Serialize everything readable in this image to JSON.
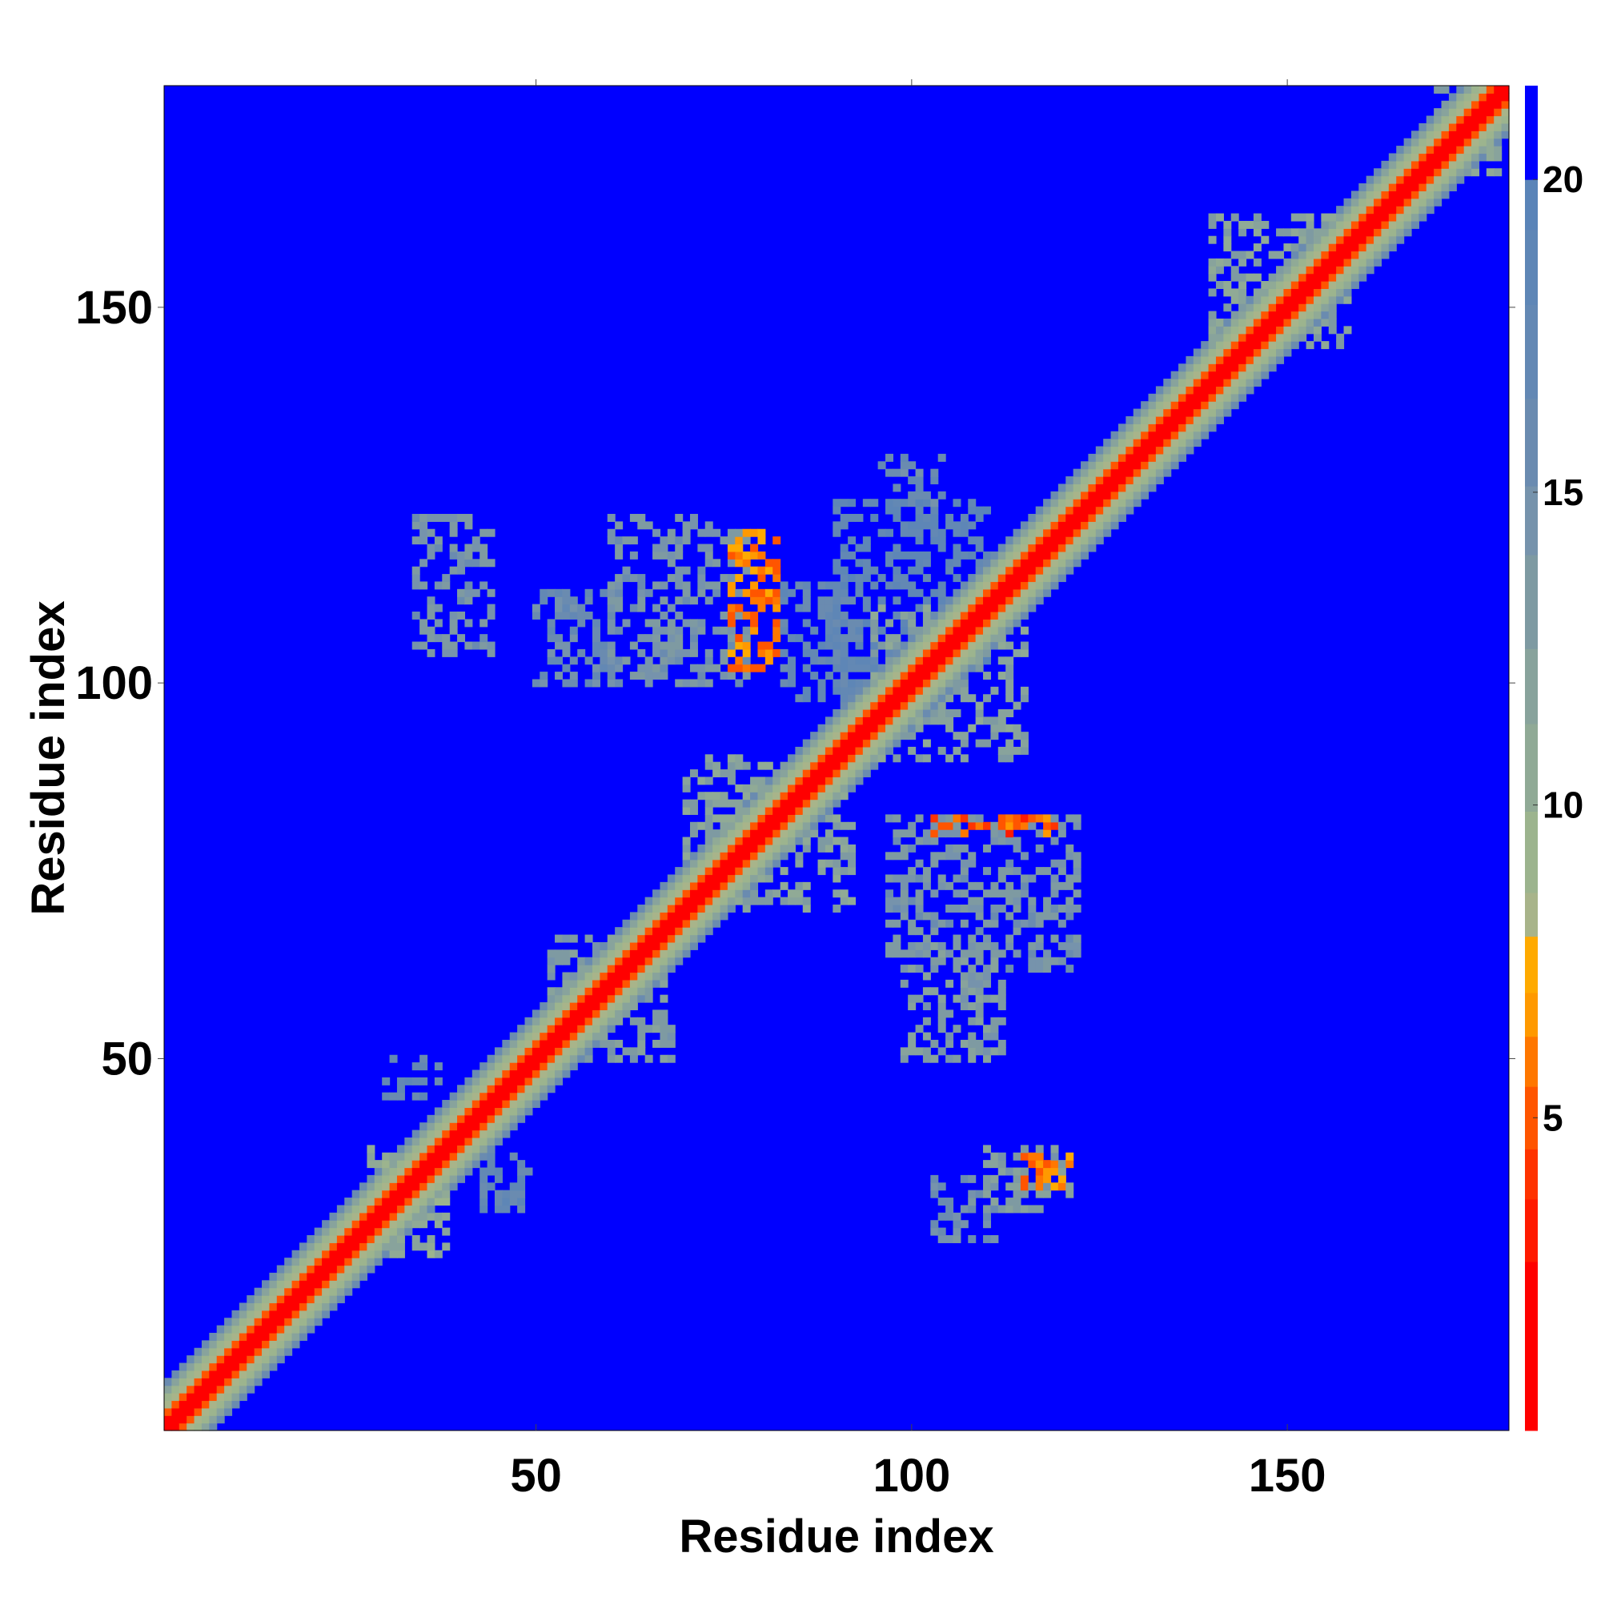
{
  "chart_data": {
    "type": "heatmap",
    "title": "",
    "xlabel": "Residue index",
    "ylabel": "Residue index",
    "x_range": [
      1,
      179
    ],
    "y_range": [
      1,
      179
    ],
    "x_ticks": [
      50,
      100,
      150
    ],
    "y_ticks": [
      50,
      100,
      150
    ],
    "colorbar": {
      "range": [
        0,
        21.5
      ],
      "ticks": [
        5,
        10,
        15,
        20
      ],
      "bands": [
        {
          "upper": 2.7,
          "color": "#ff0000"
        },
        {
          "upper": 3.7,
          "color": "#ff1a00"
        },
        {
          "upper": 4.5,
          "color": "#ff3300"
        },
        {
          "upper": 5.5,
          "color": "#ff5500"
        },
        {
          "upper": 6.3,
          "color": "#ff7700"
        },
        {
          "upper": 7.0,
          "color": "#ff9900"
        },
        {
          "upper": 7.9,
          "color": "#ffaa00"
        },
        {
          "upper": 8.6,
          "color": "#a8b48a"
        },
        {
          "upper": 9.9,
          "color": "#9cb48e"
        },
        {
          "upper": 11.3,
          "color": "#90aa96"
        },
        {
          "upper": 12.5,
          "color": "#88a39c"
        },
        {
          "upper": 14.0,
          "color": "#7e9aa2"
        },
        {
          "upper": 15.1,
          "color": "#7693ac"
        },
        {
          "upper": 16.5,
          "color": "#6a8bb0"
        },
        {
          "upper": 18.0,
          "color": "#6388b4"
        },
        {
          "upper": 19.2,
          "color": "#5e86b6"
        },
        {
          "upper": 20.0,
          "color": "#5a84b8"
        },
        {
          "upper": 21.5,
          "color": "#0000ff"
        }
      ]
    },
    "values_description_free": true,
    "background_value": 21,
    "diagonal_band": [
      {
        "max_offset": 1,
        "value": 2
      },
      {
        "max_offset": 2,
        "value": 5
      },
      {
        "max_offset": 3,
        "value": 8
      },
      {
        "max_offset": 4,
        "value": 9.5
      },
      {
        "max_offset": 5,
        "value": 12
      },
      {
        "max_offset": 6,
        "value": 16
      }
    ],
    "contact_regions": [
      {
        "x": [
          34,
          44
        ],
        "y": [
          104,
          122
        ],
        "value": 14
      },
      {
        "x": [
          50,
          60
        ],
        "y": [
          100,
          112
        ],
        "value": 16
      },
      {
        "x": [
          60,
          78
        ],
        "y": [
          100,
          122
        ],
        "value": 14
      },
      {
        "x": [
          76,
          82
        ],
        "y": [
          102,
          120
        ],
        "value": 6
      },
      {
        "x": [
          83,
          93
        ],
        "y": [
          98,
          113
        ],
        "value": 17
      },
      {
        "x": [
          90,
          110
        ],
        "y": [
          102,
          124
        ],
        "value": 18
      },
      {
        "x": [
          95,
          115
        ],
        "y": [
          90,
          110
        ],
        "value": 12
      },
      {
        "x": [
          70,
          92
        ],
        "y": [
          70,
          90
        ],
        "value": 12
      },
      {
        "x": [
          52,
          68
        ],
        "y": [
          50,
          66
        ],
        "value": 13
      },
      {
        "x": [
          28,
          38
        ],
        "y": [
          24,
          38
        ],
        "value": 11
      },
      {
        "x": [
          97,
          122
        ],
        "y": [
          62,
          82
        ],
        "value": 14
      },
      {
        "x": [
          99,
          112
        ],
        "y": [
          50,
          65
        ],
        "value": 13
      },
      {
        "x": [
          103,
          119
        ],
        "y": [
          80,
          82
        ],
        "value": 5
      },
      {
        "x": [
          110,
          121
        ],
        "y": [
          30,
          38
        ],
        "value": 13
      },
      {
        "x": [
          114,
          121
        ],
        "y": [
          33,
          37
        ],
        "value": 6
      },
      {
        "x": [
          103,
          111
        ],
        "y": [
          26,
          34
        ],
        "value": 15
      },
      {
        "x": [
          96,
          104
        ],
        "y": [
          124,
          130
        ],
        "value": 16
      },
      {
        "x": [
          140,
          158
        ],
        "y": [
          145,
          162
        ],
        "value": 12
      },
      {
        "x": [
          170,
          178
        ],
        "y": [
          168,
          179
        ],
        "value": 12
      },
      {
        "x": [
          43,
          49
        ],
        "y": [
          30,
          38
        ],
        "value": 17
      },
      {
        "x": [
          30,
          37
        ],
        "y": [
          45,
          50
        ],
        "value": 17
      }
    ]
  }
}
